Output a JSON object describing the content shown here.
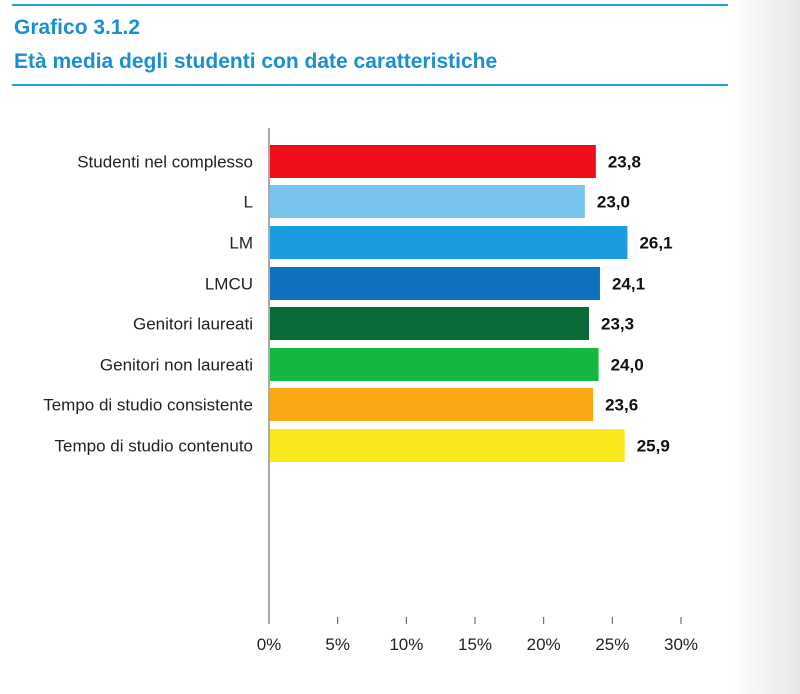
{
  "header": {
    "title_line1": "Grafico 3.1.2",
    "title_line2": "Età media degli studenti con date caratteristiche"
  },
  "chart_data": {
    "type": "bar",
    "orientation": "horizontal",
    "title": "Età media degli studenti con date caratteristiche",
    "categories": [
      "Studenti nel complesso",
      "L",
      "LM",
      "LMCU",
      "Genitori laureati",
      "Genitori non laureati",
      "Tempo di studio consistente",
      "Tempo di studio contenuto"
    ],
    "values": [
      23.8,
      23.0,
      26.1,
      24.1,
      23.3,
      24.0,
      23.6,
      25.9
    ],
    "value_labels": [
      "23,8",
      "23,0",
      "26,1",
      "24,1",
      "23,3",
      "24,0",
      "23,6",
      "25,9"
    ],
    "colors": [
      "#ee0e1a",
      "#78c4ee",
      "#1a9ce0",
      "#0f70c0",
      "#0a6a38",
      "#12b840",
      "#fba814",
      "#f8e81c"
    ],
    "groups": [
      [
        0
      ],
      [
        1,
        2,
        3
      ],
      [
        4,
        5
      ],
      [
        6,
        7
      ]
    ],
    "xlim": [
      0,
      30
    ],
    "x_ticks": [
      0,
      5,
      10,
      15,
      20,
      25,
      30
    ],
    "x_tick_labels": [
      "0%",
      "5%",
      "10%",
      "15%",
      "20%",
      "25%",
      "30%"
    ],
    "grid": false
  }
}
